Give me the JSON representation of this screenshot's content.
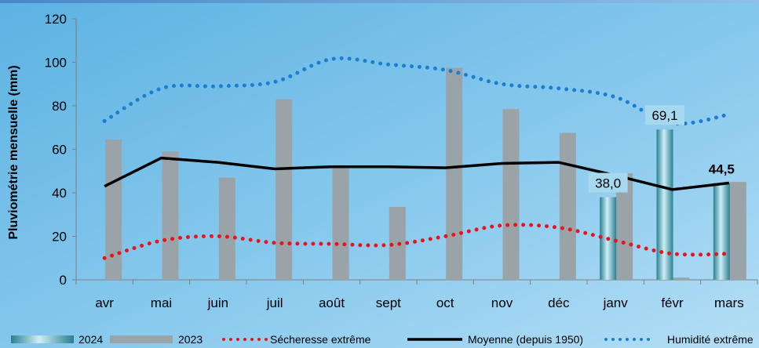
{
  "chart_data": {
    "type": "bar",
    "title": "",
    "ylabel": "Pluviométrie mensuelle (mm)",
    "xlabel": "",
    "ylim": [
      0,
      120
    ],
    "yticks": [
      0,
      20,
      40,
      60,
      80,
      100,
      120
    ],
    "grid": false,
    "legend_position": "bottom",
    "categories": [
      "avr",
      "mai",
      "juin",
      "juil",
      "août",
      "sept",
      "oct",
      "nov",
      "déc",
      "janv",
      "févr",
      "mars"
    ],
    "series": [
      {
        "name": "2024",
        "kind": "bar",
        "values": [
          null,
          null,
          null,
          null,
          null,
          null,
          null,
          null,
          null,
          38.0,
          69.1,
          44.5
        ],
        "color": "#4a9fb0"
      },
      {
        "name": "2023",
        "kind": "bar",
        "values": [
          64.5,
          59,
          47,
          83,
          52,
          33.5,
          97.5,
          78.5,
          67.5,
          49,
          1,
          45
        ],
        "color": "#9aa3a8"
      },
      {
        "name": "Sécheresse extrême",
        "kind": "line",
        "style": "dotted",
        "values": [
          10,
          18,
          20,
          17,
          16.5,
          16,
          20,
          25,
          24,
          18,
          12,
          12
        ],
        "color": "#e8141a"
      },
      {
        "name": "Moyenne (depuis 1950)",
        "kind": "line",
        "style": "solid",
        "values": [
          43,
          56,
          54,
          51,
          52,
          52,
          51.5,
          53.5,
          54,
          48,
          41.5,
          44.5
        ],
        "color": "#000000"
      },
      {
        "name": "Humidité extrême",
        "kind": "line",
        "style": "dotted",
        "values": [
          73,
          88,
          89,
          91,
          101.5,
          99,
          96.5,
          90,
          88,
          84,
          72,
          76
        ],
        "color": "#1a7fd0"
      }
    ],
    "data_labels": [
      {
        "category": "janv",
        "text": "38,0",
        "bold": false
      },
      {
        "category": "févr",
        "text": "69,1",
        "bold": false
      },
      {
        "category": "mars",
        "text": "44,5",
        "bold": true
      }
    ],
    "colors": {
      "background_top": "#6fbce6",
      "background_bottom": "#a7d8f2"
    }
  }
}
